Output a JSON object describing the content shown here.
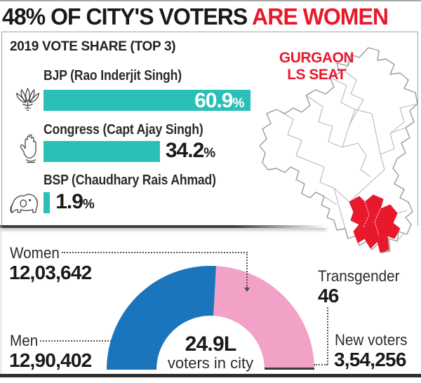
{
  "title": {
    "text_black": "48% OF CITY'S VOTERS",
    "text_red": " ARE WOMEN"
  },
  "colors": {
    "accent_red": "#e8192c",
    "bar_teal": "#2abfb7",
    "men_blue": "#1b75bc",
    "women_pink": "#f2a1c7",
    "transgender_dark": "#3a3a3a",
    "text_dark": "#231f20"
  },
  "vote_share": {
    "heading": "2019 VOTE SHARE (TOP 3)",
    "parties": [
      {
        "label": "BJP (Rao Inderjit Singh)",
        "icon": "lotus-icon",
        "value_label": "60.9",
        "unit": "%"
      },
      {
        "label": "Congress (Capt Ajay Singh)",
        "icon": "hand-icon",
        "value_label": "34.2",
        "unit": "%"
      },
      {
        "label": "BSP (Chaudhary Rais Ahmad)",
        "icon": "elephant-icon",
        "value_label": "1.9",
        "unit": "%"
      }
    ]
  },
  "map": {
    "label_line1": "GURGAON",
    "label_line2": "LS SEAT"
  },
  "electorate": {
    "women_label": "Women",
    "women_value": "12,03,642",
    "men_label": "Men",
    "men_value": "12,90,402",
    "transgender_label": "Transgender",
    "transgender_value": "46",
    "new_voters_label": "New voters",
    "new_voters_value": "3,54,256",
    "center_value": "24.9L",
    "center_label": "voters in city"
  },
  "chart_data": [
    {
      "type": "bar",
      "orientation": "horizontal",
      "title": "2019 VOTE SHARE (TOP 3)",
      "categories": [
        "BJP (Rao Inderjit Singh)",
        "Congress (Capt Ajay Singh)",
        "BSP (Chaudhary Rais Ahmad)"
      ],
      "values": [
        60.9,
        34.2,
        1.9
      ],
      "unit": "%",
      "xlim": [
        0,
        62
      ],
      "bar_color": "#2abfb7",
      "grid": false,
      "legend_position": "none"
    },
    {
      "type": "pie",
      "subtype": "semicircle-donut",
      "title": "24.9L voters in city",
      "segments": [
        {
          "label": "Men",
          "value": 1290402,
          "color": "#1b75bc"
        },
        {
          "label": "Women",
          "value": 1203642,
          "color": "#f2a1c7"
        },
        {
          "label": "Transgender",
          "value": 46,
          "color": "#3a3a3a"
        }
      ],
      "annotations": [
        {
          "label": "New voters",
          "value": 354256
        }
      ],
      "legend_position": "none"
    }
  ]
}
